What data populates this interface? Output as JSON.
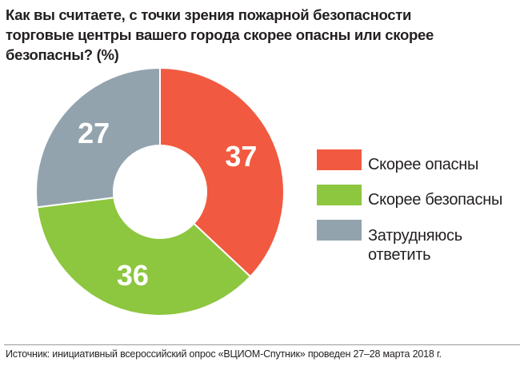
{
  "chart_data": {
    "type": "pie",
    "donut": true,
    "title": "Как вы считаете, с точки зрения пожарной безопасности торговые центры вашего города скорее опасны или скорее безопасны? (%)",
    "title_lines": [
      "Как вы считаете, с точки зрения пожарной безопасности",
      "торговые центры вашего города скорее опасны или скорее",
      "безопасны? (%)"
    ],
    "categories": [
      "Скорее опасны",
      "Скорее безопасны",
      "Затрудняюсь ответить"
    ],
    "values": [
      37,
      36,
      27
    ],
    "data_labels": [
      "37",
      "36",
      "27"
    ],
    "colors": [
      "#f15a40",
      "#8dc63f",
      "#93a3ad"
    ],
    "legend_lines": [
      [
        "Скорее опасны"
      ],
      [
        "Скорее безопасны"
      ],
      [
        "Затрудняюсь",
        "ответить"
      ]
    ],
    "legend_position": "right",
    "start": "top",
    "direction": "clockwise"
  },
  "source": "Источник: инициативный всероссийский опрос «ВЦИОМ-Спутник» проведен 27–28 марта 2018 г."
}
